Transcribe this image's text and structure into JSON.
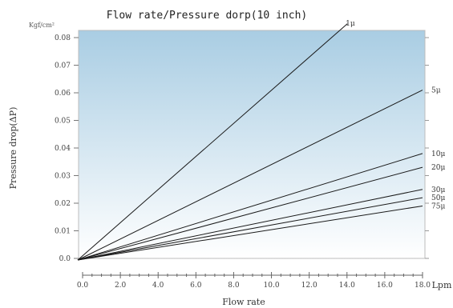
{
  "chart_data": {
    "type": "line",
    "title": "Flow rate/Pressure dorp(10 inch)",
    "xlabel": "Flow rate",
    "ylabel": "Pressure drop(ΔP)",
    "y_unit": "Kgf/cm²",
    "x_unit": "Lpm",
    "xlim": [
      0,
      16
    ],
    "ylim": [
      0,
      0.085
    ],
    "x_ticks": [
      "0.0",
      "2.0",
      "4.0",
      "6.0",
      "8.0",
      "10.0",
      "12.0",
      "14.0",
      "16.0",
      "18.0"
    ],
    "x_tick_values": [
      0,
      2,
      4,
      6,
      8,
      10,
      12,
      14,
      16,
      18
    ],
    "y_ticks": [
      "0.0",
      "0.01",
      "0.02",
      "0.03",
      "0.04",
      "0.05",
      "0.06",
      "0.07",
      "0.08"
    ],
    "y_tick_values": [
      0,
      0.01,
      0.02,
      0.03,
      0.04,
      0.05,
      0.06,
      0.07,
      0.08
    ],
    "series": [
      {
        "name": "1μ",
        "x": [
          0,
          12.5
        ],
        "y": [
          0,
          0.085
        ]
      },
      {
        "name": "5μ",
        "x": [
          0,
          16.0
        ],
        "y": [
          0,
          0.061
        ]
      },
      {
        "name": "10μ",
        "x": [
          0,
          16.0
        ],
        "y": [
          0,
          0.038
        ]
      },
      {
        "name": "20μ",
        "x": [
          0,
          16.0
        ],
        "y": [
          0,
          0.033
        ]
      },
      {
        "name": "30μ",
        "x": [
          0,
          16.0
        ],
        "y": [
          0,
          0.025
        ]
      },
      {
        "name": "50μ",
        "x": [
          0,
          16.0
        ],
        "y": [
          0,
          0.022
        ]
      },
      {
        "name": "75μ",
        "x": [
          0,
          16.0
        ],
        "y": [
          0,
          0.019
        ]
      }
    ],
    "grid": false,
    "colors": {
      "plot_top": "#a9cde3",
      "plot_bottom": "#ffffff",
      "line": "#1a1a1a"
    }
  }
}
